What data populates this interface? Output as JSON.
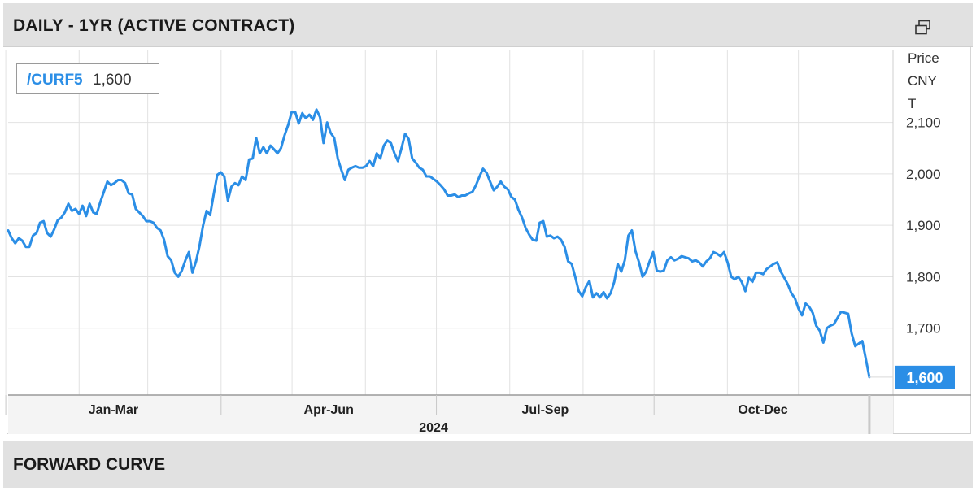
{
  "header": {
    "title": "DAILY - 1YR (ACTIVE CONTRACT)",
    "expand_icon": "popout-window-icon"
  },
  "legend": {
    "symbol": "/CURF5",
    "value": "1,600"
  },
  "footer": {
    "title": "FORWARD CURVE"
  },
  "colors": {
    "line": "#2b8ee6",
    "grid": "#e2e2e2",
    "header_bg": "#e1e1e1",
    "last_price_bg": "#2b8ee6"
  },
  "chart_data": {
    "type": "line",
    "title": "DAILY - 1YR (ACTIVE CONTRACT)",
    "ylabel": [
      "Price",
      "CNY",
      "T"
    ],
    "ylim": [
      1570,
      2240
    ],
    "y_ticks": [
      1700,
      1800,
      1900,
      2000,
      2100
    ],
    "y_tick_labels": [
      "1,700",
      "1,800",
      "1,900",
      "2,000",
      "2,100"
    ],
    "x_period_labels": [
      "Jan-Mar",
      "Apr-Jun",
      "Jul-Sep",
      "Oct-Dec"
    ],
    "x_year_label": "2024",
    "last_price_label": "1,600",
    "grid": true,
    "series": [
      {
        "name": "/CURF5",
        "x_start": "2024-01-02",
        "x_end": "2024-12-31",
        "values": [
          1890,
          1875,
          1865,
          1875,
          1870,
          1858,
          1858,
          1880,
          1885,
          1905,
          1908,
          1885,
          1878,
          1892,
          1910,
          1915,
          1925,
          1942,
          1928,
          1932,
          1922,
          1938,
          1918,
          1942,
          1925,
          1922,
          1945,
          1965,
          1985,
          1978,
          1982,
          1988,
          1988,
          1982,
          1962,
          1960,
          1932,
          1925,
          1918,
          1908,
          1908,
          1905,
          1895,
          1890,
          1872,
          1840,
          1832,
          1808,
          1800,
          1812,
          1832,
          1848,
          1808,
          1830,
          1860,
          1900,
          1928,
          1920,
          1960,
          1998,
          2003,
          1995,
          1948,
          1975,
          1982,
          1978,
          1995,
          1988,
          2028,
          2030,
          2070,
          2040,
          2052,
          2040,
          2055,
          2048,
          2040,
          2050,
          2075,
          2095,
          2120,
          2120,
          2098,
          2118,
          2108,
          2115,
          2105,
          2125,
          2110,
          2060,
          2100,
          2080,
          2070,
          2030,
          2008,
          1988,
          2008,
          2012,
          2015,
          2012,
          2012,
          2015,
          2025,
          2015,
          2040,
          2030,
          2055,
          2065,
          2060,
          2040,
          2025,
          2050,
          2078,
          2068,
          2030,
          2022,
          2012,
          2008,
          1995,
          1995,
          1990,
          1985,
          1978,
          1970,
          1958,
          1958,
          1960,
          1955,
          1958,
          1958,
          1962,
          1965,
          1978,
          1995,
          2010,
          2002,
          1985,
          1968,
          1975,
          1985,
          1975,
          1970,
          1955,
          1950,
          1930,
          1915,
          1895,
          1882,
          1872,
          1870,
          1905,
          1908,
          1878,
          1880,
          1875,
          1878,
          1872,
          1858,
          1830,
          1825,
          1800,
          1772,
          1762,
          1780,
          1792,
          1760,
          1768,
          1760,
          1770,
          1758,
          1768,
          1790,
          1825,
          1810,
          1832,
          1880,
          1890,
          1850,
          1828,
          1800,
          1810,
          1830,
          1848,
          1812,
          1810,
          1812,
          1832,
          1838,
          1832,
          1835,
          1840,
          1838,
          1836,
          1830,
          1832,
          1828,
          1820,
          1830,
          1836,
          1848,
          1845,
          1840,
          1848,
          1828,
          1800,
          1795,
          1800,
          1790,
          1772,
          1798,
          1790,
          1808,
          1808,
          1805,
          1815,
          1820,
          1825,
          1828,
          1810,
          1798,
          1785,
          1768,
          1758,
          1738,
          1725,
          1748,
          1742,
          1730,
          1705,
          1695,
          1672,
          1700,
          1705,
          1708,
          1720,
          1732,
          1730,
          1728,
          1690,
          1665,
          1670,
          1675,
          1640,
          1605
        ]
      }
    ]
  }
}
